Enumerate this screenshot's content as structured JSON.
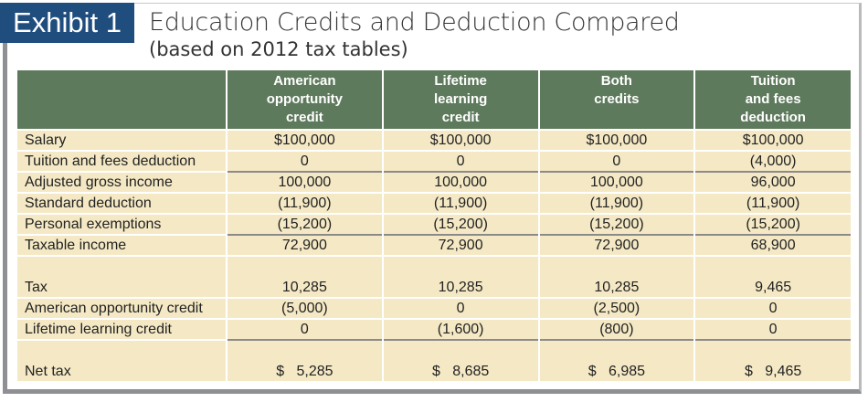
{
  "exhibit_label": "Exhibit 1",
  "title": "Education Credits and Deduction Compared",
  "subtitle": "(based on 2012 tax tables)",
  "columns": [
    [
      "American",
      "opportunity",
      "credit"
    ],
    [
      "Lifetime",
      "learning",
      "credit"
    ],
    [
      "Both",
      "credits",
      ""
    ],
    [
      "Tuition",
      "and fees",
      "deduction"
    ]
  ],
  "rows": [
    {
      "label": "Salary",
      "values": [
        "$100,000",
        "$100,000",
        "$100,000",
        "$100,000"
      ]
    },
    {
      "label": "Tuition and fees deduction",
      "values": [
        "0",
        "0",
        "0",
        "(4,000)"
      ]
    },
    {
      "label": "Adjusted gross income",
      "values": [
        "100,000",
        "100,000",
        "100,000",
        "96,000"
      ]
    },
    {
      "label": "Standard deduction",
      "values": [
        "(11,900)",
        "(11,900)",
        "(11,900)",
        "(11,900)"
      ]
    },
    {
      "label": "Personal exemptions",
      "values": [
        "(15,200)",
        "(15,200)",
        "(15,200)",
        "(15,200)"
      ]
    },
    {
      "label": "Taxable income",
      "values": [
        "72,900",
        "72,900",
        "72,900",
        "68,900"
      ]
    },
    {
      "label": "Tax",
      "values": [
        "10,285",
        "10,285",
        "10,285",
        "9,465"
      ]
    },
    {
      "label": "American opportunity credit",
      "values": [
        "(5,000)",
        "0",
        "(2,500)",
        "0"
      ]
    },
    {
      "label": "Lifetime learning credit",
      "values": [
        "0",
        "(1,600)",
        "(800)",
        "0"
      ]
    },
    {
      "label": "Net tax",
      "values": [
        "$   5,285",
        "$   8,685",
        "$   6,985",
        "$   9,465"
      ]
    }
  ],
  "colors": {
    "exhibit_bg": "#1f4d7e",
    "header_bg": "#5e7a5c",
    "row_bg": "#f5e9c5"
  }
}
